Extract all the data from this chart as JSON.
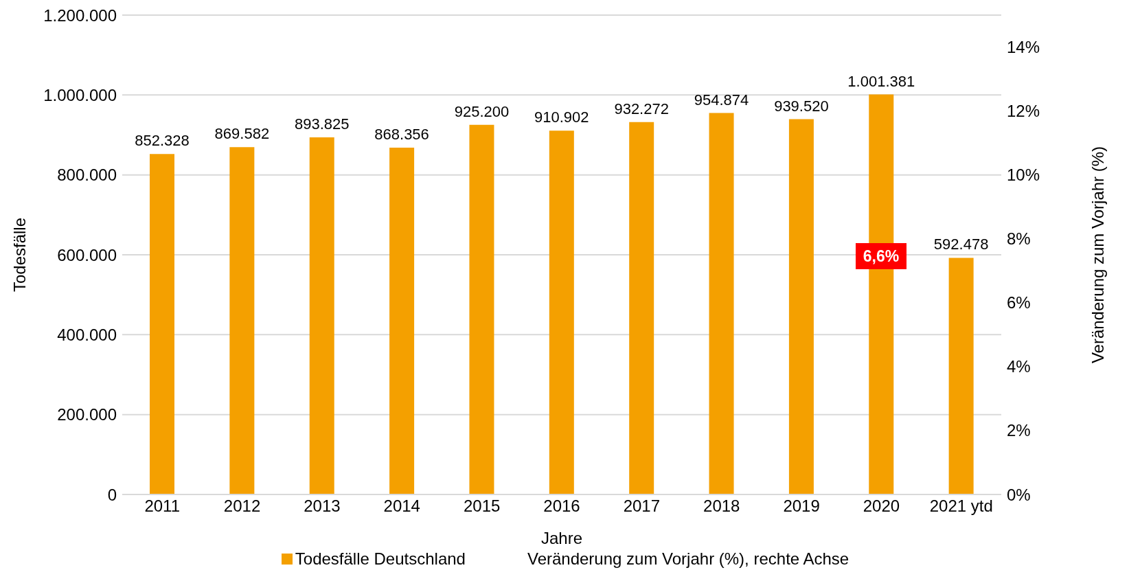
{
  "chart_data": {
    "type": "bar",
    "xlabel": "Jahre",
    "ylabel": "Todesfälle",
    "y2label": "Veränderung zum Vorjahr (%)",
    "categories": [
      "2011",
      "2012",
      "2013",
      "2014",
      "2015",
      "2016",
      "2017",
      "2018",
      "2019",
      "2020",
      "2021 ytd"
    ],
    "series": [
      {
        "name": "Todesfälle Deutschland",
        "color": "#f4a000",
        "values": [
          852328,
          869582,
          893825,
          868356,
          925200,
          910902,
          932272,
          954874,
          939520,
          1001381,
          592478
        ],
        "value_labels": [
          "852.328",
          "869.582",
          "893.825",
          "868.356",
          "925.200",
          "910.902",
          "932.272",
          "954.874",
          "939.520",
          "1.001.381",
          "592.478"
        ]
      },
      {
        "name": "Veränderung zum Vorjahr (%), rechte Achse",
        "type": "line",
        "values": [
          null,
          null,
          null,
          null,
          null,
          null,
          null,
          null,
          null,
          null,
          null
        ]
      }
    ],
    "ylim": [
      0,
      1200000
    ],
    "yticks": [
      0,
      {
        "value": 200000,
        "label": "200.000"
      },
      {
        "value": 400000,
        "label": "400.000"
      },
      {
        "value": 600000,
        "label": "600.000"
      },
      {
        "value": 800000,
        "label": "800.000"
      },
      {
        "value": 1000000,
        "label": "1.000.000"
      },
      {
        "value": 1200000,
        "label": "1.200.000"
      }
    ],
    "y2lim": [
      0,
      15
    ],
    "y2ticks": [
      {
        "value": 0,
        "label": "0%"
      },
      {
        "value": 2,
        "label": "2%"
      },
      {
        "value": 4,
        "label": "4%"
      },
      {
        "value": 6,
        "label": "6%"
      },
      {
        "value": 8,
        "label": "8%"
      },
      {
        "value": 10,
        "label": "10%"
      },
      {
        "value": 12,
        "label": "12%"
      },
      {
        "value": 14,
        "label": "14%"
      }
    ],
    "annotations": [
      "6,6%"
    ],
    "grid": "y",
    "legend": "bottom"
  }
}
